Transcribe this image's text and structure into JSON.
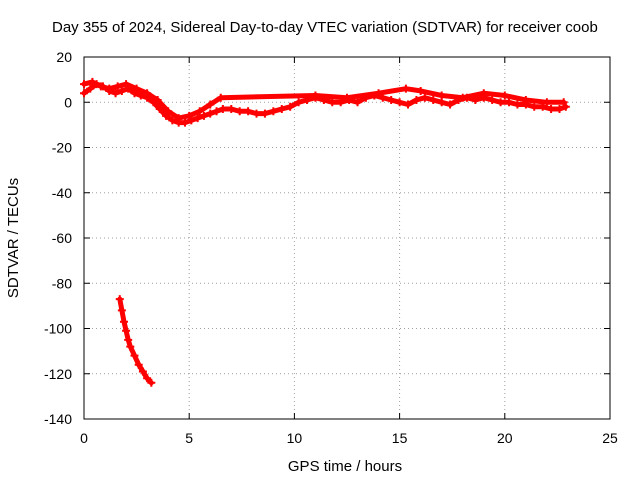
{
  "chart_data": {
    "type": "scatter",
    "title": "Day 355 of 2024, Sidereal Day-to-day VTEC variation (SDTVAR) for receiver coob",
    "xlabel": "GPS time / hours",
    "ylabel": "SDTVAR / TECUs",
    "xlim": [
      0,
      25
    ],
    "ylim": [
      -140,
      20
    ],
    "xticks": [
      0,
      5,
      10,
      15,
      20,
      25
    ],
    "yticks": [
      -140,
      -120,
      -100,
      -80,
      -60,
      -40,
      -20,
      0,
      20
    ],
    "grid": true,
    "series_color": "#ff0000",
    "series": [
      {
        "name": "main",
        "points": [
          [
            0.0,
            4
          ],
          [
            0.3,
            6
          ],
          [
            0.6,
            8
          ],
          [
            0.9,
            7
          ],
          [
            1.2,
            5
          ],
          [
            1.5,
            4
          ],
          [
            1.8,
            5
          ],
          [
            2.1,
            6
          ],
          [
            2.4,
            4
          ],
          [
            2.7,
            3
          ],
          [
            3.0,
            2
          ],
          [
            3.3,
            0
          ],
          [
            3.6,
            -3
          ],
          [
            3.9,
            -6
          ],
          [
            4.2,
            -8
          ],
          [
            4.5,
            -9
          ],
          [
            4.8,
            -9
          ],
          [
            5.1,
            -8
          ],
          [
            5.4,
            -7
          ],
          [
            5.7,
            -6
          ],
          [
            6.0,
            -5
          ],
          [
            6.3,
            -4
          ],
          [
            6.6,
            -3
          ],
          [
            7.0,
            -3
          ],
          [
            7.4,
            -4
          ],
          [
            7.8,
            -4
          ],
          [
            8.2,
            -5
          ],
          [
            8.6,
            -5
          ],
          [
            9.0,
            -4
          ],
          [
            9.4,
            -3
          ],
          [
            9.8,
            -2
          ],
          [
            10.2,
            0
          ],
          [
            10.6,
            1
          ],
          [
            11.0,
            2
          ],
          [
            11.4,
            1
          ],
          [
            11.8,
            0
          ],
          [
            12.2,
            0
          ],
          [
            12.6,
            1
          ],
          [
            13.0,
            0
          ],
          [
            13.4,
            2
          ],
          [
            13.8,
            3
          ],
          [
            14.2,
            2
          ],
          [
            14.6,
            1
          ],
          [
            15.0,
            0
          ],
          [
            15.4,
            -1
          ],
          [
            15.8,
            1
          ],
          [
            16.2,
            2
          ],
          [
            16.6,
            1
          ],
          [
            17.0,
            0
          ],
          [
            17.4,
            -1
          ],
          [
            17.8,
            1
          ],
          [
            18.2,
            2
          ],
          [
            18.6,
            1
          ],
          [
            19.0,
            2
          ],
          [
            19.4,
            1
          ],
          [
            19.8,
            0
          ],
          [
            20.2,
            0
          ],
          [
            20.6,
            -1
          ],
          [
            21.0,
            -1
          ],
          [
            21.4,
            -2
          ],
          [
            21.8,
            -2
          ],
          [
            22.2,
            -3
          ],
          [
            22.6,
            -3
          ],
          [
            22.9,
            -2
          ]
        ]
      },
      {
        "name": "upper-band",
        "points": [
          [
            0.0,
            8
          ],
          [
            0.4,
            9
          ],
          [
            0.8,
            7
          ],
          [
            1.2,
            6
          ],
          [
            1.6,
            7
          ],
          [
            2.0,
            8
          ],
          [
            2.5,
            6
          ],
          [
            3.0,
            4
          ],
          [
            3.5,
            1
          ],
          [
            4.0,
            -4
          ],
          [
            4.5,
            -7
          ],
          [
            5.0,
            -6
          ],
          [
            5.5,
            -4
          ],
          [
            6.0,
            -1
          ],
          [
            6.5,
            2
          ],
          [
            11.0,
            3
          ],
          [
            12.5,
            2
          ],
          [
            14.0,
            4
          ],
          [
            15.3,
            6
          ],
          [
            16.0,
            5
          ],
          [
            17.0,
            3
          ],
          [
            18.0,
            2
          ],
          [
            19.0,
            4
          ],
          [
            20.0,
            3
          ],
          [
            21.0,
            1
          ],
          [
            22.0,
            0
          ],
          [
            22.8,
            0
          ]
        ]
      },
      {
        "name": "lower-segment",
        "points": [
          [
            1.7,
            -87
          ],
          [
            1.8,
            -92
          ],
          [
            1.9,
            -97
          ],
          [
            2.0,
            -101
          ],
          [
            2.1,
            -105
          ],
          [
            2.2,
            -108
          ],
          [
            2.4,
            -112
          ],
          [
            2.6,
            -116
          ],
          [
            2.8,
            -119
          ],
          [
            3.0,
            -122
          ],
          [
            3.2,
            -124
          ]
        ]
      }
    ]
  }
}
